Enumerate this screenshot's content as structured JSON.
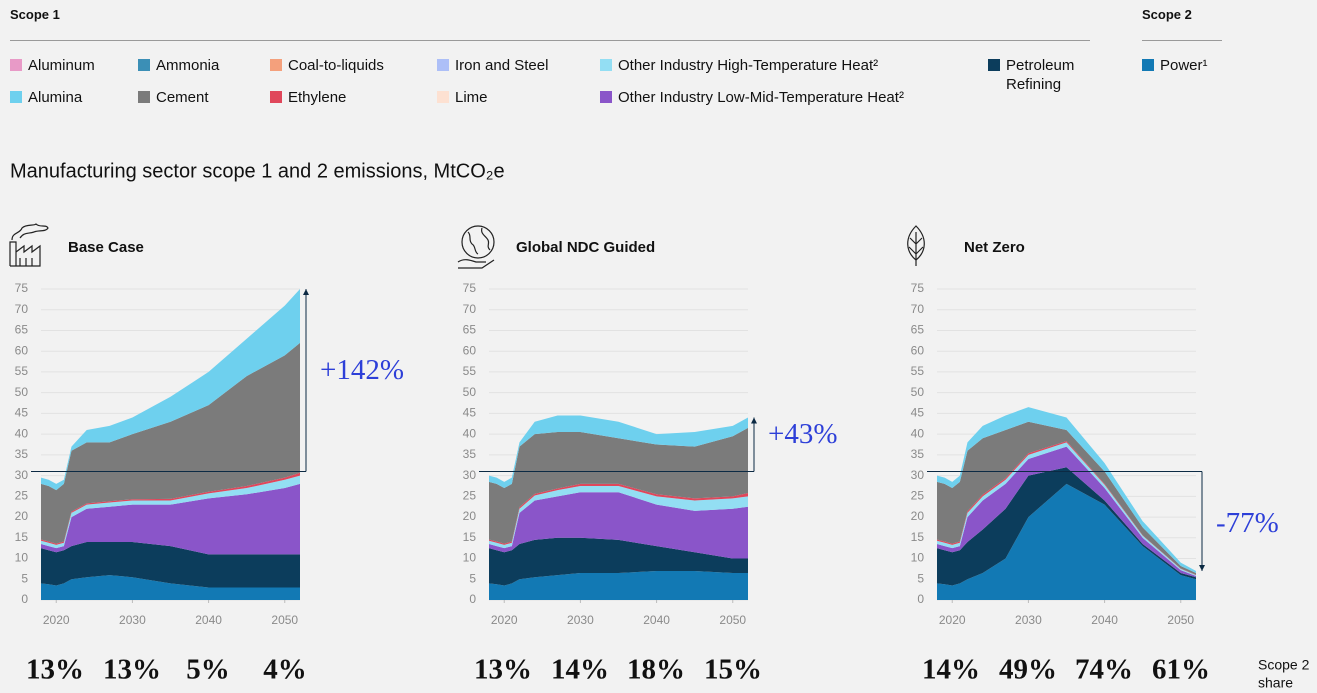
{
  "legend": {
    "groups": [
      {
        "title": "Scope 1",
        "items": [
          {
            "name": "Aluminum",
            "color": "#e89ac7"
          },
          {
            "name": "Alumina",
            "color": "#6ed0ee"
          },
          {
            "name": "Ammonia",
            "color": "#3b8fb6"
          },
          {
            "name": "Cement",
            "color": "#7b7b7b"
          },
          {
            "name": "Coal-to-liquids",
            "color": "#f4a07c"
          },
          {
            "name": "Ethylene",
            "color": "#e0475b"
          },
          {
            "name": "Iron and Steel",
            "color": "#adbff7"
          },
          {
            "name": "Lime",
            "color": "#fde1d2"
          },
          {
            "name": "Other Industry High-Temperature Heat²",
            "color": "#93def3"
          },
          {
            "name": "Other Industry Low-Mid-Temperature Heat²",
            "color": "#8a55c9"
          },
          {
            "name": "Petroleum Refining",
            "color": "#0c3d5c"
          }
        ]
      },
      {
        "title": "Scope 2",
        "items": [
          {
            "name": "Power¹",
            "color": "#1279b4"
          }
        ]
      }
    ]
  },
  "title": "Manufacturing sector scope 1 and 2 emissions, MtCO₂e",
  "share_caption": [
    "Scope 2",
    "share"
  ],
  "chart_data": [
    {
      "type": "stacked_area",
      "title": "Base Case",
      "x": [
        2018,
        2019,
        2020,
        2021,
        2022,
        2024,
        2027,
        2030,
        2035,
        2040,
        2045,
        2050,
        2052
      ],
      "xlim": [
        2018,
        2052
      ],
      "xticks": [
        2020,
        2030,
        2040,
        2050
      ],
      "ylim": [
        0,
        75
      ],
      "yticks": [
        0,
        5,
        10,
        15,
        20,
        25,
        30,
        35,
        40,
        45,
        50,
        55,
        60,
        65,
        70,
        75
      ],
      "series": [
        {
          "name": "Power¹",
          "values": [
            4,
            3.8,
            3.5,
            4,
            5,
            5.5,
            6,
            5.5,
            4,
            3,
            3,
            3,
            3
          ]
        },
        {
          "name": "Petroleum Refining",
          "values": [
            8.5,
            8.2,
            8,
            8,
            8,
            8.5,
            8,
            8.5,
            9,
            8,
            8,
            8,
            8
          ]
        },
        {
          "name": "Other Industry Low-Mid-Temperature Heat²",
          "values": [
            1,
            1,
            1,
            1,
            7,
            8,
            8.5,
            9,
            10,
            13.5,
            14.5,
            16,
            17
          ]
        },
        {
          "name": "Other Industry High-Temperature Heat²",
          "values": [
            0.8,
            0.8,
            0.8,
            0.8,
            1,
            1,
            1,
            1,
            1,
            1.2,
            1.5,
            2,
            2
          ]
        },
        {
          "name": "Ethylene",
          "values": [
            0.3,
            0.3,
            0.3,
            0.3,
            0.3,
            0.3,
            0.3,
            0.3,
            0.4,
            0.4,
            0.5,
            0.5,
            0.7
          ]
        },
        {
          "name": "Cement",
          "values": [
            13.4,
            13.4,
            12.9,
            13.9,
            14.7,
            14.7,
            14.2,
            15.7,
            18.6,
            20.9,
            26.5,
            29.5,
            31.3
          ]
        },
        {
          "name": "Alumina",
          "values": [
            1.5,
            1.5,
            1.5,
            1,
            1,
            3,
            4,
            4,
            6,
            8,
            9,
            12,
            13
          ]
        }
      ],
      "reference": {
        "from": 31,
        "to": 75,
        "label": "+142%"
      },
      "share_labels": [
        "13%",
        "13%",
        "5%",
        "4%"
      ]
    },
    {
      "type": "stacked_area",
      "title": "Global NDC Guided",
      "x": [
        2018,
        2019,
        2020,
        2021,
        2022,
        2024,
        2027,
        2030,
        2035,
        2040,
        2045,
        2050,
        2052
      ],
      "xlim": [
        2018,
        2052
      ],
      "xticks": [
        2020,
        2030,
        2040,
        2050
      ],
      "ylim": [
        0,
        75
      ],
      "yticks": [
        0,
        5,
        10,
        15,
        20,
        25,
        30,
        35,
        40,
        45,
        50,
        55,
        60,
        65,
        70,
        75
      ],
      "series": [
        {
          "name": "Power¹",
          "values": [
            4,
            3.8,
            3.5,
            4,
            5,
            5.5,
            6,
            6.5,
            6.5,
            7,
            7,
            6.5,
            6.5
          ]
        },
        {
          "name": "Petroleum Refining",
          "values": [
            8.5,
            8.2,
            8,
            8,
            8.5,
            9,
            9,
            8.5,
            8,
            6,
            4.5,
            3.5,
            3.5
          ]
        },
        {
          "name": "Other Industry Low-Mid-Temperature Heat²",
          "values": [
            1,
            1,
            1,
            1,
            7.5,
            9.5,
            10,
            11,
            11.5,
            10,
            10,
            12,
            12.5
          ]
        },
        {
          "name": "Other Industry High-Temperature Heat²",
          "values": [
            0.8,
            0.8,
            0.8,
            0.8,
            1,
            1.2,
            1.5,
            1.5,
            1.5,
            2,
            2.5,
            2.5,
            2.5
          ]
        },
        {
          "name": "Ethylene",
          "values": [
            0.3,
            0.3,
            0.3,
            0.3,
            0.4,
            0.4,
            0.4,
            0.5,
            0.5,
            0.5,
            0.5,
            0.5,
            0.8
          ]
        },
        {
          "name": "Cement",
          "values": [
            13.9,
            13.9,
            13.4,
            13.9,
            14.6,
            14.4,
            13.6,
            12.5,
            11,
            12,
            12.5,
            14.5,
            15.7
          ]
        },
        {
          "name": "Alumina",
          "values": [
            1.5,
            1.5,
            1.5,
            1.5,
            1,
            3,
            4,
            4,
            4,
            2.5,
            3.5,
            2.5,
            2.5
          ]
        }
      ],
      "reference": {
        "from": 31,
        "to": 44,
        "label": "+43%"
      },
      "share_labels": [
        "13%",
        "14%",
        "18%",
        "15%"
      ]
    },
    {
      "type": "stacked_area",
      "title": "Net Zero",
      "x": [
        2018,
        2019,
        2020,
        2021,
        2022,
        2024,
        2027,
        2030,
        2035,
        2040,
        2045,
        2050,
        2052
      ],
      "xlim": [
        2018,
        2052
      ],
      "xticks": [
        2020,
        2030,
        2040,
        2050
      ],
      "ylim": [
        0,
        75
      ],
      "yticks": [
        0,
        5,
        10,
        15,
        20,
        25,
        30,
        35,
        40,
        45,
        50,
        55,
        60,
        65,
        70,
        75
      ],
      "series": [
        {
          "name": "Power¹",
          "values": [
            4,
            3.8,
            3.5,
            4,
            5,
            6.5,
            10,
            20,
            28,
            23,
            13,
            6,
            5
          ]
        },
        {
          "name": "Petroleum Refining",
          "values": [
            8.5,
            8.2,
            8,
            8,
            9,
            10.5,
            12,
            10,
            4,
            1,
            0.5,
            0.5,
            0.5
          ]
        },
        {
          "name": "Other Industry Low-Mid-Temperature Heat²",
          "values": [
            1,
            1,
            1,
            1,
            6,
            7,
            6,
            4,
            5,
            3,
            1.5,
            0.7,
            0.3
          ]
        },
        {
          "name": "Other Industry High-Temperature Heat²",
          "values": [
            0.8,
            0.8,
            0.8,
            0.8,
            1,
            1,
            1,
            1,
            1,
            0.8,
            0.5,
            0.3,
            0.2
          ]
        },
        {
          "name": "Ethylene",
          "values": [
            0.3,
            0.3,
            0.3,
            0.3,
            0.4,
            0.4,
            0.4,
            0.4,
            0.3,
            0.2,
            0.1,
            0.1,
            0.1
          ]
        },
        {
          "name": "Cement",
          "values": [
            13.9,
            13.9,
            13.4,
            14.4,
            14.6,
            13.6,
            11.6,
            7.6,
            2.7,
            3,
            1.9,
            0.6,
            0.4
          ]
        },
        {
          "name": "Alumina",
          "values": [
            1.5,
            1.5,
            1.5,
            1.5,
            2,
            3,
            3.5,
            3.5,
            3,
            2,
            1.5,
            0.8,
            0.5
          ]
        }
      ],
      "reference": {
        "from": 31,
        "to": 7,
        "label": "-77%"
      },
      "share_labels": [
        "14%",
        "49%",
        "74%",
        "61%"
      ]
    }
  ]
}
